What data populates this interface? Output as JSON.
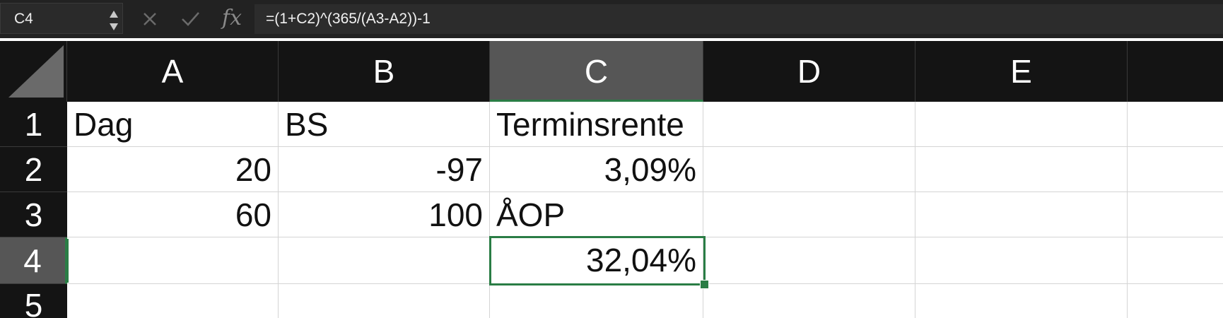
{
  "formula_bar": {
    "name_box": "C4",
    "formula": "=(1+C2)^(365/(A3-A2))-1",
    "fx_label": "fx"
  },
  "columns": [
    "A",
    "B",
    "C",
    "D",
    "E"
  ],
  "rows": [
    "1",
    "2",
    "3",
    "4",
    "5"
  ],
  "cells": {
    "A1": "Dag",
    "B1": "BS",
    "C1": "Terminsrente",
    "A2": "20",
    "B2": "-97",
    "C2": "3,09%",
    "A3": "60",
    "B3": "100",
    "C3": "ÅOP",
    "C4": "32,04%"
  },
  "selection": {
    "active_cell": "C4",
    "selected_column": "C",
    "selected_row": "4"
  },
  "colors": {
    "selection_green": "#2a7d45",
    "header_bg": "#141414",
    "header_selected_bg": "#565656",
    "toolbar_bg": "#222222"
  }
}
